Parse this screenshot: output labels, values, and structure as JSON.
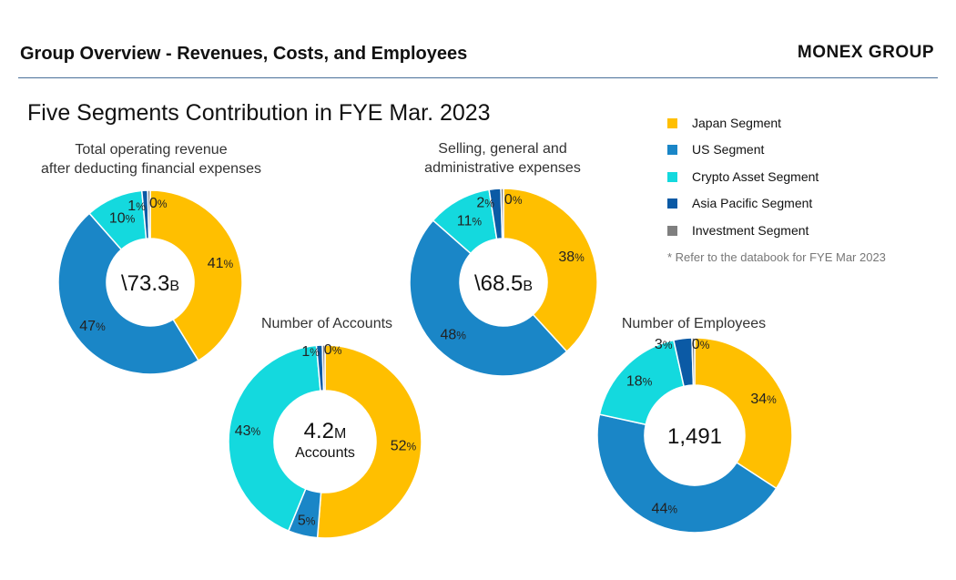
{
  "header": {
    "title": "Group Overview - Revenues, Costs, and Employees",
    "brand": "MONEX GROUP"
  },
  "main_title": "Five Segments Contribution in FYE Mar. 2023",
  "legend": {
    "items": [
      {
        "label": "Japan Segment",
        "color": "#ffbf00"
      },
      {
        "label": "US Segment",
        "color": "#1a86c7"
      },
      {
        "label": "Crypto Asset Segment",
        "color": "#14d9de"
      },
      {
        "label": "Asia Pacific Segment",
        "color": "#0b5aa5"
      },
      {
        "label": "Investment Segment",
        "color": "#7f7f7f"
      }
    ],
    "note": "* Refer to the databook for FYE Mar 2023"
  },
  "chart_data": [
    {
      "type": "pie",
      "title": "Total operating revenue after deducting financial expenses",
      "title_lines": [
        "Total operating revenue",
        "after deducting financial expenses"
      ],
      "center": {
        "main": "\\73.3",
        "unit": "B",
        "sub": ""
      },
      "categories": [
        "Japan Segment",
        "US Segment",
        "Crypto Asset Segment",
        "Asia Pacific Segment",
        "Investment Segment"
      ],
      "values": [
        41,
        47,
        10,
        1,
        0
      ],
      "labels": [
        "41",
        "47",
        "10",
        "1",
        "0"
      ]
    },
    {
      "type": "pie",
      "title": "Selling, general and administrative expenses",
      "title_lines": [
        "Selling, general and",
        "administrative expenses"
      ],
      "center": {
        "main": "\\68.5",
        "unit": "B",
        "sub": ""
      },
      "categories": [
        "Japan Segment",
        "US Segment",
        "Crypto Asset Segment",
        "Asia Pacific Segment",
        "Investment Segment"
      ],
      "values": [
        38,
        48,
        11,
        2,
        0
      ],
      "labels": [
        "38",
        "48",
        "11",
        "2",
        "0"
      ]
    },
    {
      "type": "pie",
      "title": "Number of Accounts",
      "title_lines": [
        "Number of Accounts"
      ],
      "center": {
        "main": "4.2",
        "unit": "M",
        "sub": "Accounts"
      },
      "categories": [
        "Japan Segment",
        "US Segment",
        "Crypto Asset Segment",
        "Asia Pacific Segment",
        "Investment Segment"
      ],
      "values": [
        52,
        5,
        43,
        1,
        0
      ],
      "labels": [
        "52",
        "5",
        "43",
        "1",
        "0"
      ]
    },
    {
      "type": "pie",
      "title": "Number of Employees",
      "title_lines": [
        "Number of Employees"
      ],
      "center": {
        "main": "1,491",
        "unit": "",
        "sub": ""
      },
      "categories": [
        "Japan Segment",
        "US Segment",
        "Crypto Asset Segment",
        "Asia Pacific Segment",
        "Investment Segment"
      ],
      "values": [
        34,
        44,
        18,
        3,
        0
      ],
      "labels": [
        "34",
        "44",
        "18",
        "3",
        "0"
      ]
    }
  ]
}
